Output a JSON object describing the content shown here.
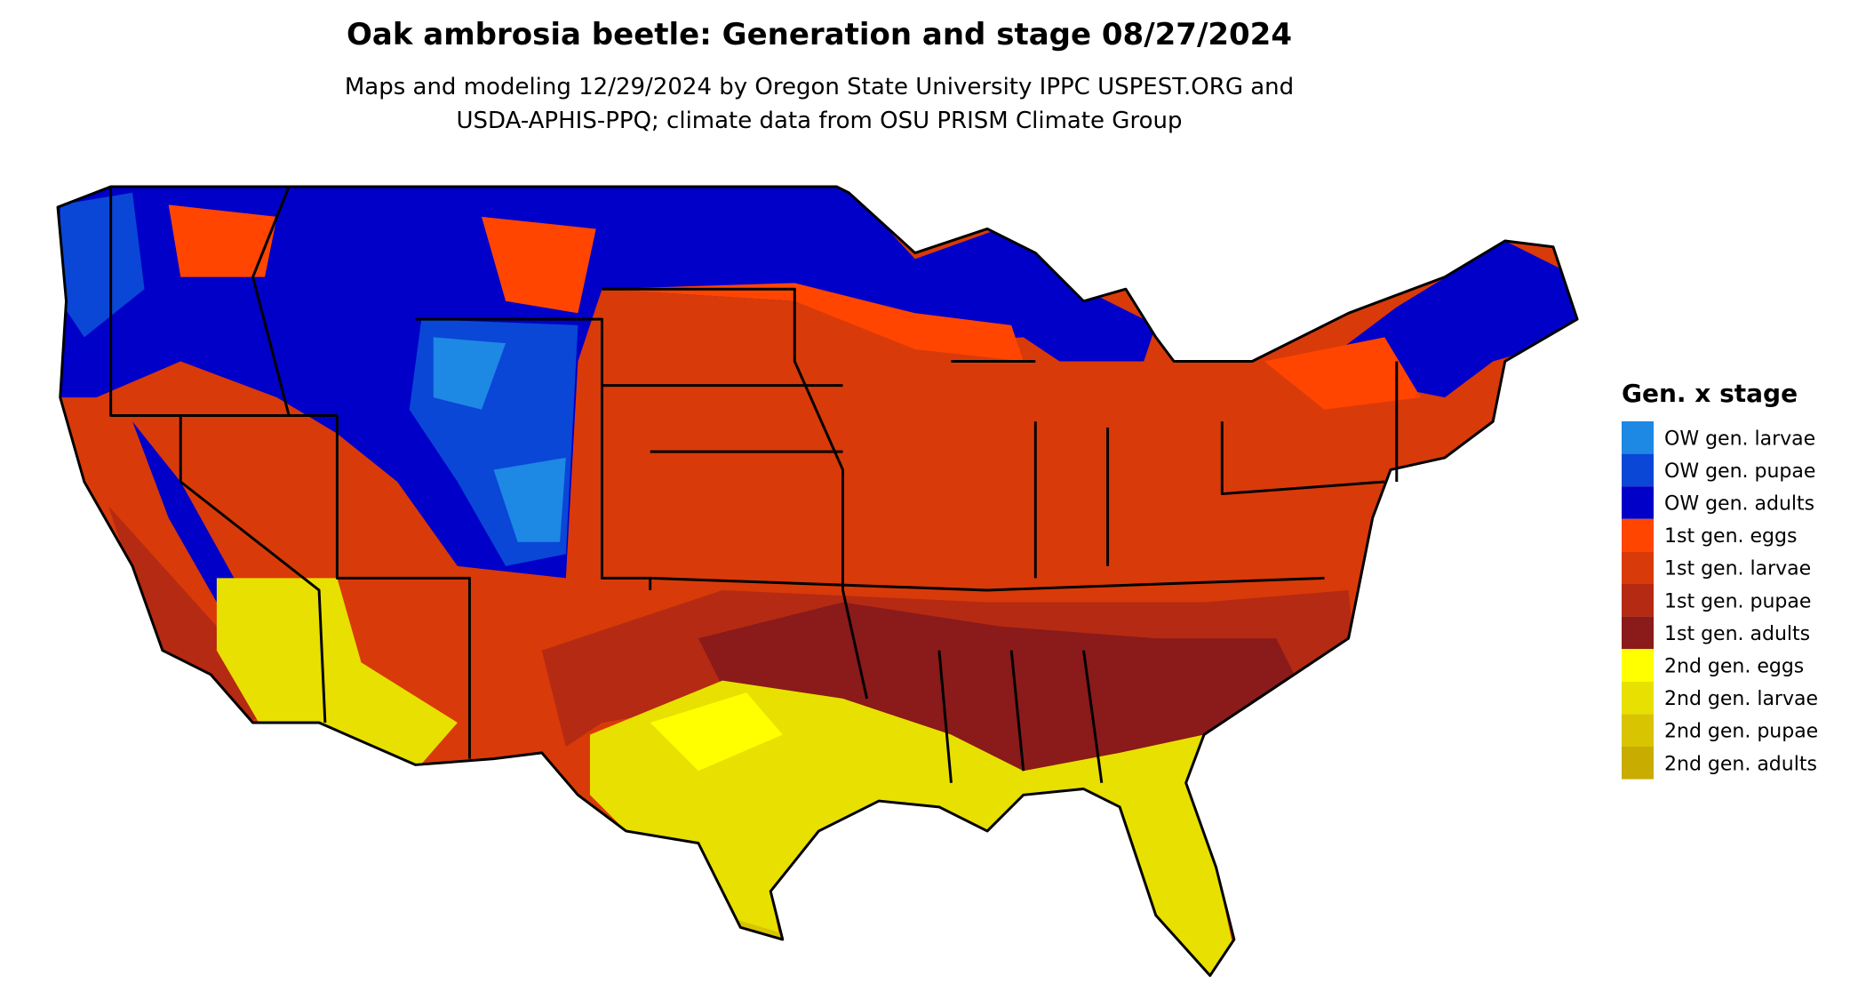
{
  "header": {
    "title": "Oak ambrosia beetle: Generation and stage 08/27/2024",
    "subtitle_lines": [
      "Maps and modeling 12/29/2024 by Oregon State University IPPC USPEST.ORG and",
      "USDA-APHIS-PPQ; climate data from OSU PRISM Climate Group"
    ]
  },
  "legend": {
    "title": "Gen. x stage",
    "items": [
      {
        "label": "OW gen. larvae",
        "color": "#1e88e5"
      },
      {
        "label": "OW gen. pupae",
        "color": "#0a47d6"
      },
      {
        "label": "OW gen. adults",
        "color": "#0000c8"
      },
      {
        "label": "1st gen. eggs",
        "color": "#ff4500"
      },
      {
        "label": "1st gen. larvae",
        "color": "#d93a0a"
      },
      {
        "label": "1st gen. pupae",
        "color": "#b52a12"
      },
      {
        "label": "1st gen. adults",
        "color": "#8b1a1a"
      },
      {
        "label": "2nd gen. eggs",
        "color": "#ffff00"
      },
      {
        "label": "2nd gen. larvae",
        "color": "#e8e000"
      },
      {
        "label": "2nd gen. pupae",
        "color": "#d8c400"
      },
      {
        "label": "2nd gen. adults",
        "color": "#c8ac00"
      }
    ]
  }
}
